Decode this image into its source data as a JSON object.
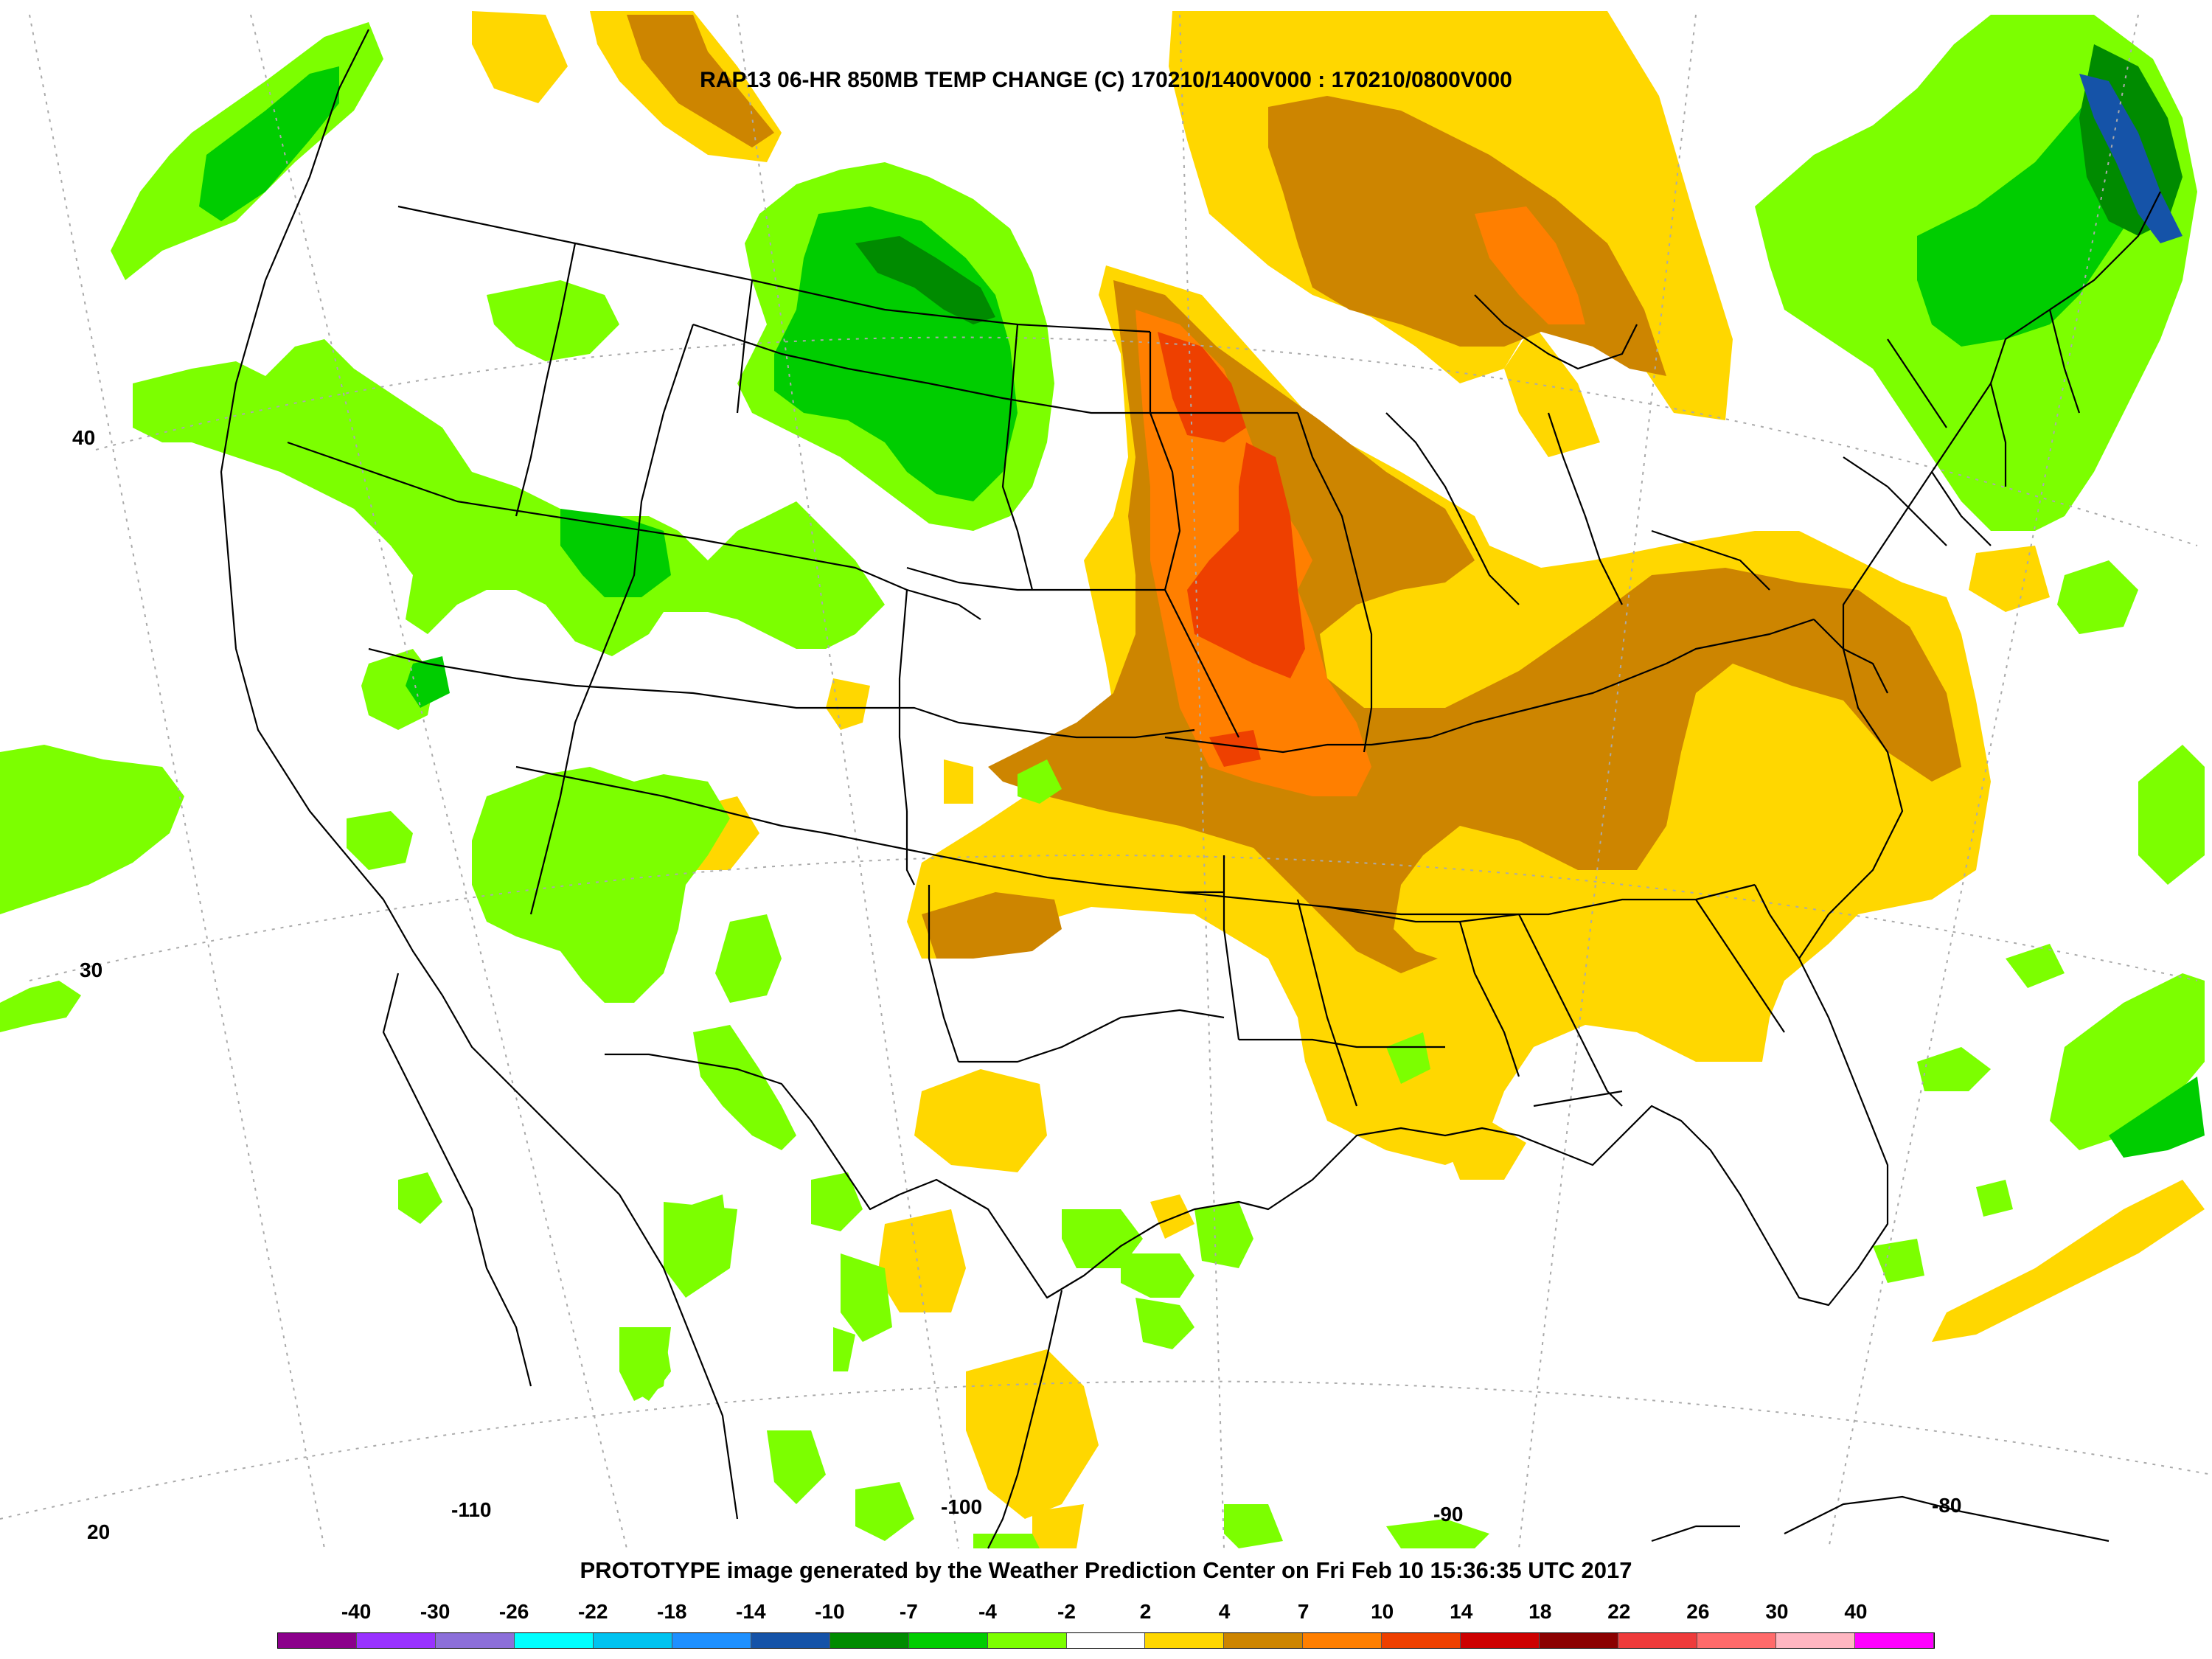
{
  "map": {
    "title": "RAP13 06-HR 850MB TEMP CHANGE (C) 170210/1400V000 : 170210/0800V000",
    "credit": "PROTOTYPE image generated by the Weather Prediction Center on Fri Feb 10 15:36:35 UTC 2017",
    "lat_labels": [
      "40",
      "30",
      "20"
    ],
    "lon_labels": [
      "-110",
      "-100",
      "-90",
      "-80"
    ],
    "region": "contiguous United States, southern Canada, northern Mexico, Cuba"
  },
  "legend": {
    "labels": [
      "-40",
      "-30",
      "-26",
      "-22",
      "-18",
      "-14",
      "-10",
      "-7",
      "-4",
      "-2",
      "2",
      "4",
      "7",
      "10",
      "14",
      "18",
      "22",
      "26",
      "30",
      "40"
    ],
    "colors": [
      "#8b008b",
      "#9932ff",
      "#8c6fd9",
      "#00ffff",
      "#00c3f0",
      "#1e90ff",
      "#1553a8",
      "#008b00",
      "#00cd00",
      "#7cff00",
      "#ffffff",
      "#ffd700",
      "#cd8500",
      "#ff7f00",
      "#ee4000",
      "#cd0000",
      "#8b0000",
      "#ee3b3b",
      "#ff6a6a",
      "#ffb6c1",
      "#ff00ff"
    ]
  },
  "field_colors": {
    "light_green": "#7cff00",
    "green": "#00cd00",
    "dark_green": "#008b00",
    "blue": "#1553a8",
    "gold": "#ffd700",
    "brown": "#cd8500",
    "orange": "#ff7f00",
    "red_orange": "#ee4000"
  }
}
